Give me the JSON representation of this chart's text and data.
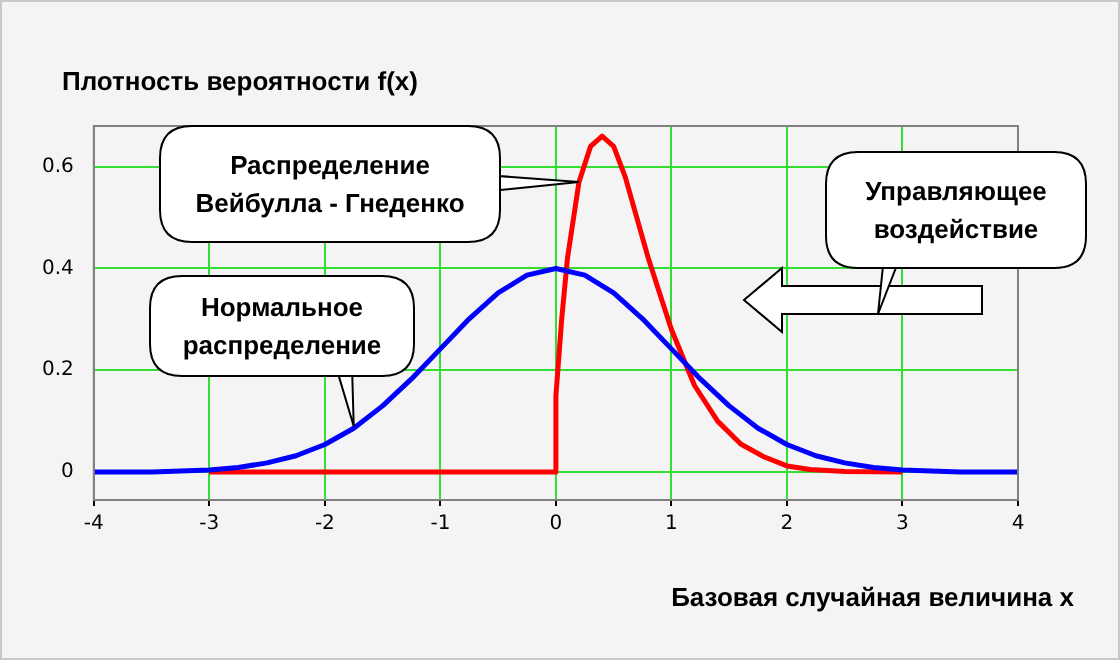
{
  "chart_data": {
    "type": "line",
    "xlabel": "Базовая случайная величина x",
    "ylabel": "Плотность вероятности f(x)",
    "xlim": [
      -4,
      4
    ],
    "xticks": [
      -4,
      -3,
      -2,
      -1,
      0,
      1,
      2,
      3,
      4
    ],
    "ylim": [
      -0.055,
      0.68
    ],
    "yticks": [
      0,
      0.2,
      0.4,
      0.6
    ],
    "grid": true,
    "legend": false,
    "marker": "none",
    "line_style": "solid",
    "series": [
      {
        "color": "#0000ff",
        "x": [
          -4,
          -3.5,
          -3,
          -2.75,
          -2.5,
          -2.25,
          -2,
          -1.75,
          -1.5,
          -1.25,
          -1,
          -0.75,
          -0.5,
          -0.25,
          0,
          0.25,
          0.5,
          0.75,
          1,
          1.25,
          1.5,
          1.75,
          2,
          2.25,
          2.5,
          2.75,
          3,
          3.5,
          4
        ],
        "values": [
          0,
          0,
          0.004,
          0.009,
          0.018,
          0.032,
          0.054,
          0.086,
          0.13,
          0.183,
          0.242,
          0.301,
          0.352,
          0.387,
          0.4,
          0.387,
          0.352,
          0.301,
          0.242,
          0.183,
          0.13,
          0.086,
          0.054,
          0.032,
          0.018,
          0.009,
          0.004,
          0,
          0
        ]
      },
      {
        "color": "#ff0000",
        "x": [
          -3,
          0,
          0,
          0.05,
          0.1,
          0.2,
          0.3,
          0.4,
          0.5,
          0.6,
          0.7,
          0.8,
          0.9,
          1,
          1.2,
          1.4,
          1.6,
          1.8,
          2,
          2.2,
          2.5,
          3
        ],
        "values": [
          0,
          0,
          0.15,
          0.3,
          0.42,
          0.57,
          0.64,
          0.66,
          0.64,
          0.58,
          0.5,
          0.42,
          0.35,
          0.28,
          0.17,
          0.1,
          0.055,
          0.03,
          0.012,
          0.005,
          0.001,
          0
        ]
      }
    ],
    "annotations": [
      {
        "text": "Распределение Вейбулла - Гнеденко",
        "x": 0.2,
        "y": 0.57
      },
      {
        "text": "Нормальное распределение",
        "x": -1.75,
        "y": 0.09
      },
      "Управляющее воздействие"
    ]
  }
}
